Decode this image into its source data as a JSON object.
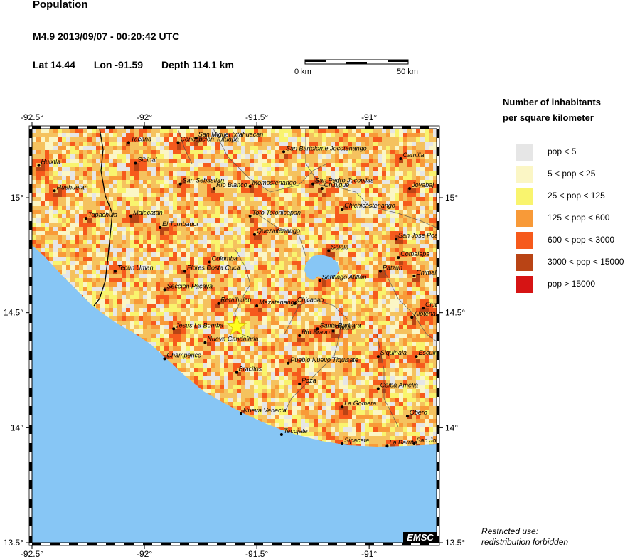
{
  "header": {
    "title": "Population",
    "event": "M4.9  2013/09/07 - 00:20:42 UTC",
    "lat": "Lat 14.44",
    "lon": "Lon -91.59",
    "depth": "Depth 114.1 km"
  },
  "scalebar": {
    "left_label": "0 km",
    "right_label": "50 km"
  },
  "map": {
    "lon_range": [
      -92.5,
      -90.7
    ],
    "lat_range": [
      13.5,
      15.3
    ],
    "x_ticks": [
      {
        "lon": -92.5,
        "label": "-92.5°"
      },
      {
        "lon": -92.0,
        "label": "-92°"
      },
      {
        "lon": -91.5,
        "label": "-91.5°"
      },
      {
        "lon": -91.0,
        "label": "-91°"
      }
    ],
    "y_ticks": [
      {
        "lat": 15.0,
        "label": "15°"
      },
      {
        "lat": 14.5,
        "label": "14.5°"
      },
      {
        "lat": 14.0,
        "label": "14°"
      },
      {
        "lat": 13.5,
        "label": "13.5°"
      }
    ],
    "epicenter": {
      "lon": -91.59,
      "lat": 14.44
    },
    "ocean_color": "#87c6f5",
    "lake_color": "#87c6f5",
    "badge": "EMSC",
    "cities": [
      {
        "name": "Tacana",
        "lon": -92.07,
        "lat": 15.24
      },
      {
        "name": "Concepcion Tutuapa",
        "lon": -91.85,
        "lat": 15.24
      },
      {
        "name": "San Miguel Ixtahuacan",
        "lon": -91.77,
        "lat": 15.26
      },
      {
        "name": "San Bartolome Jocotenango",
        "lon": -91.38,
        "lat": 15.2
      },
      {
        "name": "Camilla",
        "lon": -90.86,
        "lat": 15.17
      },
      {
        "name": "Huixtla",
        "lon": -92.47,
        "lat": 15.14
      },
      {
        "name": "Sibinal",
        "lon": -92.04,
        "lat": 15.15
      },
      {
        "name": "San Sebastian",
        "lon": -91.84,
        "lat": 15.06
      },
      {
        "name": "Rio Blanco",
        "lon": -91.69,
        "lat": 15.04
      },
      {
        "name": "Momostenango",
        "lon": -91.53,
        "lat": 15.05
      },
      {
        "name": "San Pedro Jocopilas",
        "lon": -91.25,
        "lat": 15.06
      },
      {
        "name": "Chinique",
        "lon": -91.21,
        "lat": 15.04
      },
      {
        "name": "Joyabaj",
        "lon": -90.82,
        "lat": 15.04
      },
      {
        "name": "Huehuetan",
        "lon": -92.4,
        "lat": 15.03
      },
      {
        "name": "Chichicastenango",
        "lon": -91.12,
        "lat": 14.95
      },
      {
        "name": "Tapachula",
        "lon": -92.26,
        "lat": 14.91
      },
      {
        "name": "Malacatan",
        "lon": -92.06,
        "lat": 14.92
      },
      {
        "name": "Toto Totonicapan",
        "lon": -91.53,
        "lat": 14.92
      },
      {
        "name": "El Turnbador",
        "lon": -91.93,
        "lat": 14.87
      },
      {
        "name": "Quezaltenango",
        "lon": -91.51,
        "lat": 14.84
      },
      {
        "name": "San Jose Poaquil",
        "lon": -90.88,
        "lat": 14.82
      },
      {
        "name": "Solola",
        "lon": -91.18,
        "lat": 14.77
      },
      {
        "name": "Comalapa",
        "lon": -90.87,
        "lat": 14.74
      },
      {
        "name": "Colomba",
        "lon": -91.71,
        "lat": 14.72
      },
      {
        "name": "Tecun Uman",
        "lon": -92.13,
        "lat": 14.68
      },
      {
        "name": "Flores Costa Cuca",
        "lon": -91.82,
        "lat": 14.68
      },
      {
        "name": "Patzun",
        "lon": -90.95,
        "lat": 14.68
      },
      {
        "name": "Chimaltenango",
        "lon": -90.8,
        "lat": 14.66
      },
      {
        "name": "Santiago Atitlan",
        "lon": -91.22,
        "lat": 14.64
      },
      {
        "name": "Seccion Pacaya",
        "lon": -91.91,
        "lat": 14.6
      },
      {
        "name": "Mazatenango",
        "lon": -91.5,
        "lat": 14.53
      },
      {
        "name": "Retalhuleu",
        "lon": -91.67,
        "lat": 14.54
      },
      {
        "name": "Chicacao",
        "lon": -91.33,
        "lat": 14.54
      },
      {
        "name": "Ciudad Vieja",
        "lon": -90.76,
        "lat": 14.52
      },
      {
        "name": "Alotenango",
        "lon": -90.81,
        "lat": 14.48
      },
      {
        "name": "Jesus La Bomba",
        "lon": -91.87,
        "lat": 14.43
      },
      {
        "name": "Santa Barbara",
        "lon": -91.23,
        "lat": 14.43
      },
      {
        "name": "Patulul",
        "lon": -91.16,
        "lat": 14.42
      },
      {
        "name": "Rio Bravo",
        "lon": -91.31,
        "lat": 14.4
      },
      {
        "name": "Nueva Candalaria",
        "lon": -91.73,
        "lat": 14.37
      },
      {
        "name": "Siquinala",
        "lon": -90.96,
        "lat": 14.31
      },
      {
        "name": "Escuintla",
        "lon": -90.79,
        "lat": 14.31
      },
      {
        "name": "Champerico",
        "lon": -91.91,
        "lat": 14.3
      },
      {
        "name": "Pueblo Nuevo Tiquisate",
        "lon": -91.36,
        "lat": 14.28
      },
      {
        "name": "Bracitos",
        "lon": -91.59,
        "lat": 14.24
      },
      {
        "name": "Poza",
        "lon": -91.31,
        "lat": 14.19
      },
      {
        "name": "Ceiba Amelia",
        "lon": -90.96,
        "lat": 14.17
      },
      {
        "name": "Nueva Venecia",
        "lon": -91.57,
        "lat": 14.06
      },
      {
        "name": "La Gomera",
        "lon": -91.12,
        "lat": 14.09
      },
      {
        "name": "Obero",
        "lon": -90.83,
        "lat": 14.05
      },
      {
        "name": "Tecojate",
        "lon": -91.39,
        "lat": 13.97
      },
      {
        "name": "Sipacate",
        "lon": -91.12,
        "lat": 13.93
      },
      {
        "name": "La Barrita",
        "lon": -90.92,
        "lat": 13.92
      },
      {
        "name": "San Jose",
        "lon": -90.8,
        "lat": 13.93
      }
    ]
  },
  "legend": {
    "title_line1": "Number of inhabitants",
    "title_line2": "per square kilometer",
    "items": [
      {
        "label": "pop < 5",
        "color": "#e6e6e6"
      },
      {
        "label": "5 < pop < 25",
        "color": "#fbf6c5"
      },
      {
        "label": "25 < pop < 125",
        "color": "#f9f46e"
      },
      {
        "label": "125 < pop < 600",
        "color": "#f89a38"
      },
      {
        "label": "600 < pop < 3000",
        "color": "#f65a1c"
      },
      {
        "label": "3000 < pop < 15000",
        "color": "#b94415"
      },
      {
        "label": "pop > 15000",
        "color": "#d61414"
      }
    ]
  },
  "footer": {
    "restricted_line1": "Restricted use:",
    "restricted_line2": "redistribution forbidden"
  }
}
